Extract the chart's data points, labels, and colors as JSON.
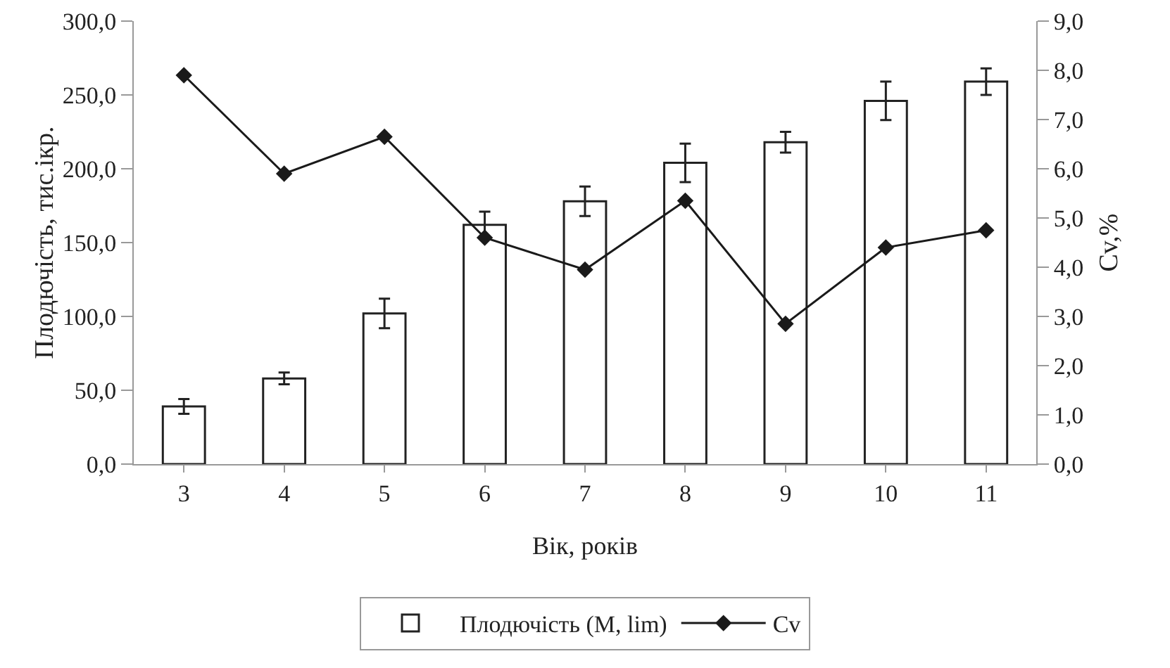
{
  "chart_data": {
    "type": "bar",
    "xlabel": "Вік, років",
    "ylabel": "Плодючість, тис.ікр.",
    "y2label": "Cv,%",
    "categories": [
      "3",
      "4",
      "5",
      "6",
      "7",
      "8",
      "9",
      "10",
      "11"
    ],
    "series": [
      {
        "name": "Плодючість (M, lim)",
        "color": "#ffffff",
        "values": [
          39,
          58,
          102,
          162,
          178,
          204,
          218,
          246,
          259
        ],
        "errors": [
          5,
          4,
          10,
          9,
          10,
          13,
          7,
          13,
          9
        ]
      },
      {
        "name": "Cv",
        "type": "line",
        "axis": "y2",
        "color": "#1a1a1a",
        "marker": "diamond",
        "values": [
          7.9,
          5.9,
          6.65,
          4.6,
          3.95,
          5.35,
          2.85,
          4.4,
          4.75
        ]
      }
    ],
    "ylim": [
      0,
      300
    ],
    "yticks": [
      {
        "value": 0,
        "label": "0,0"
      },
      {
        "value": 50,
        "label": "50,0"
      },
      {
        "value": 100,
        "label": "100,0"
      },
      {
        "value": 150,
        "label": "150,0"
      },
      {
        "value": 200,
        "label": "200,0"
      },
      {
        "value": 250,
        "label": "250,0"
      },
      {
        "value": 300,
        "label": "300,0"
      }
    ],
    "y2lim": [
      0,
      9
    ],
    "y2ticks": [
      {
        "value": 0,
        "label": "0,0"
      },
      {
        "value": 1,
        "label": "1,0"
      },
      {
        "value": 2,
        "label": "2,0"
      },
      {
        "value": 3,
        "label": "3,0"
      },
      {
        "value": 4,
        "label": "4,0"
      },
      {
        "value": 5,
        "label": "5,0"
      },
      {
        "value": 6,
        "label": "6,0"
      },
      {
        "value": 7,
        "label": "7,0"
      },
      {
        "value": 8,
        "label": "8,0"
      },
      {
        "value": 9,
        "label": "9,0"
      }
    ],
    "grid": false,
    "legend": "bottom"
  }
}
